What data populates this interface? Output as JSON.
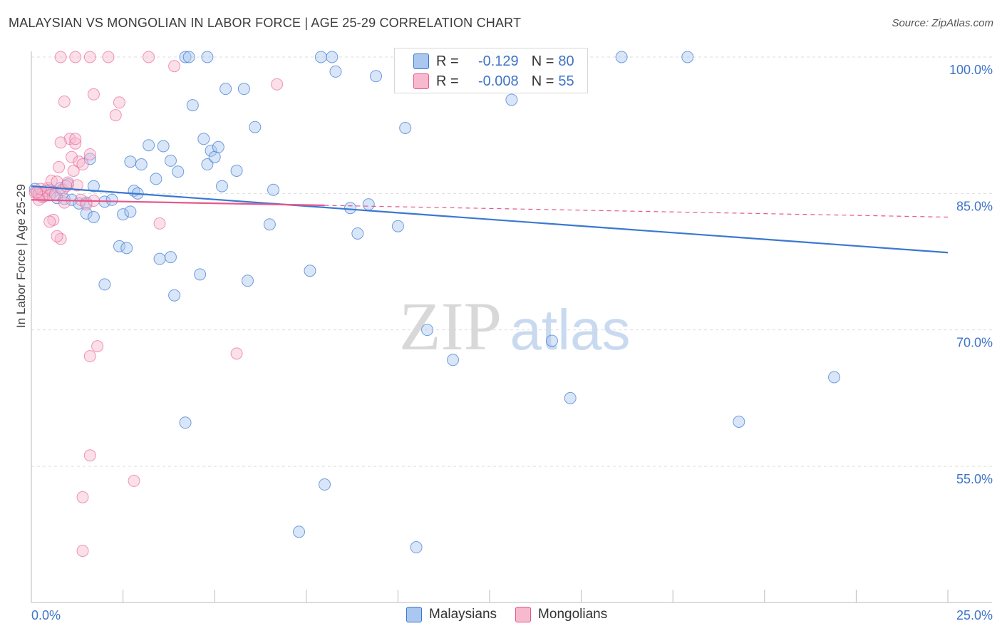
{
  "title": "MALAYSIAN VS MONGOLIAN IN LABOR FORCE | AGE 25-29 CORRELATION CHART",
  "source": "Source: ZipAtlas.com",
  "colors": {
    "blue": "#3a78d2",
    "blue_fill": "#a9c7ef",
    "pink": "#e6578c",
    "pink_fill": "#f7b9ce",
    "axis_label": "#3f74c7",
    "grid": "#dddddd"
  },
  "legend": {
    "rows": [
      {
        "r_label": "R =",
        "r_value": "-0.129",
        "n_label": "N =",
        "n_value": "80"
      },
      {
        "r_label": "R =",
        "r_value": "-0.008",
        "n_label": "N =",
        "n_value": "55"
      }
    ]
  },
  "bottom_legend": [
    "Malaysians",
    "Mongolians"
  ],
  "watermark": {
    "zip": "ZIP",
    "atlas": "atlas"
  },
  "chart_data": {
    "type": "scatter",
    "title": "MALAYSIAN VS MONGOLIAN IN LABOR FORCE | AGE 25-29 CORRELATION CHART",
    "xlabel": "",
    "ylabel": "In Labor Force | Age 25-29",
    "xlim": [
      0,
      25
    ],
    "ylim": [
      40,
      102
    ],
    "x_ticks": [
      0,
      2.5,
      5,
      7.5,
      10,
      12.5,
      15,
      17.5,
      20,
      22.5,
      25
    ],
    "x_tick_labels": {
      "first": "0.0%",
      "last": "25.0%"
    },
    "y_ticks": [
      100,
      85,
      70,
      55
    ],
    "y_tick_labels": [
      "100.0%",
      "85.0%",
      "70.0%",
      "55.0%"
    ],
    "series": [
      {
        "name": "Malaysians",
        "r": -0.129,
        "n": 80,
        "trend": {
          "x": [
            0,
            25
          ],
          "y": [
            85.8,
            78.5
          ],
          "dashed_from": null
        },
        "points": [
          [
            0.1,
            85.5
          ],
          [
            0.2,
            85.1
          ],
          [
            0.3,
            85.0
          ],
          [
            0.4,
            85.3
          ],
          [
            0.5,
            85.4
          ],
          [
            0.6,
            85.2
          ],
          [
            0.7,
            84.5
          ],
          [
            0.8,
            85.6
          ],
          [
            0.9,
            84.4
          ],
          [
            1.0,
            86.0
          ],
          [
            1.1,
            84.3
          ],
          [
            1.3,
            83.9
          ],
          [
            1.5,
            84.0
          ],
          [
            1.6,
            88.8
          ],
          [
            1.7,
            85.8
          ],
          [
            2.0,
            84.1
          ],
          [
            2.2,
            84.3
          ],
          [
            1.5,
            82.8
          ],
          [
            1.7,
            82.4
          ],
          [
            2.5,
            82.7
          ],
          [
            2.4,
            79.2
          ],
          [
            2.6,
            79.0
          ],
          [
            2.7,
            88.5
          ],
          [
            2.8,
            85.3
          ],
          [
            2.9,
            85.0
          ],
          [
            3.0,
            88.2
          ],
          [
            3.2,
            90.3
          ],
          [
            3.4,
            86.6
          ],
          [
            3.6,
            90.2
          ],
          [
            3.8,
            88.6
          ],
          [
            4.0,
            87.4
          ],
          [
            2.0,
            75.0
          ],
          [
            3.5,
            77.8
          ],
          [
            3.8,
            78.0
          ],
          [
            3.9,
            73.8
          ],
          [
            4.2,
            100.0
          ],
          [
            4.3,
            100.0
          ],
          [
            4.4,
            94.7
          ],
          [
            4.7,
            91.0
          ],
          [
            4.8,
            88.2
          ],
          [
            4.9,
            89.7
          ],
          [
            5.0,
            89.0
          ],
          [
            5.1,
            90.1
          ],
          [
            5.2,
            85.8
          ],
          [
            5.3,
            96.5
          ],
          [
            5.6,
            87.5
          ],
          [
            5.8,
            96.5
          ],
          [
            6.1,
            92.3
          ],
          [
            6.5,
            81.6
          ],
          [
            6.6,
            85.4
          ],
          [
            4.6,
            76.1
          ],
          [
            5.9,
            75.4
          ],
          [
            4.2,
            59.8
          ],
          [
            7.6,
            76.5
          ],
          [
            7.9,
            100.0
          ],
          [
            8.0,
            53.0
          ],
          [
            8.2,
            100.0
          ],
          [
            8.3,
            98.4
          ],
          [
            8.7,
            83.4
          ],
          [
            8.9,
            80.6
          ],
          [
            9.2,
            83.8
          ],
          [
            9.4,
            97.9
          ],
          [
            10.0,
            81.4
          ],
          [
            10.2,
            92.2
          ],
          [
            10.8,
            70.0
          ],
          [
            11.5,
            66.7
          ],
          [
            13.0,
            100.0
          ],
          [
            13.1,
            95.3
          ],
          [
            14.2,
            68.8
          ],
          [
            14.7,
            62.5
          ],
          [
            16.1,
            100.0
          ],
          [
            17.9,
            100.0
          ],
          [
            19.3,
            59.9
          ],
          [
            21.9,
            64.8
          ],
          [
            7.3,
            47.8
          ],
          [
            10.5,
            46.1
          ],
          [
            4.8,
            100.0
          ],
          [
            2.7,
            83.0
          ],
          [
            12.5,
            100.0
          ],
          [
            0.3,
            84.7
          ]
        ]
      },
      {
        "name": "Mongolians",
        "r": -0.008,
        "n": 55,
        "trend": {
          "x": [
            0,
            25
          ],
          "y": [
            84.3,
            82.4
          ],
          "dashed_from": 8.0
        },
        "points": [
          [
            0.1,
            85.1
          ],
          [
            0.2,
            84.9
          ],
          [
            0.3,
            85.0
          ],
          [
            0.35,
            84.7
          ],
          [
            0.4,
            85.3
          ],
          [
            0.45,
            85.6
          ],
          [
            0.5,
            84.8
          ],
          [
            0.55,
            86.4
          ],
          [
            0.6,
            82.1
          ],
          [
            0.65,
            84.9
          ],
          [
            0.7,
            86.3
          ],
          [
            0.75,
            87.9
          ],
          [
            0.8,
            80.0
          ],
          [
            0.85,
            85.4
          ],
          [
            0.9,
            84.0
          ],
          [
            0.95,
            85.8
          ],
          [
            1.0,
            86.2
          ],
          [
            1.05,
            91.0
          ],
          [
            1.1,
            89.0
          ],
          [
            1.15,
            87.5
          ],
          [
            1.2,
            90.5
          ],
          [
            1.25,
            85.9
          ],
          [
            1.3,
            88.5
          ],
          [
            1.35,
            84.3
          ],
          [
            1.4,
            88.2
          ],
          [
            1.5,
            83.8
          ],
          [
            1.6,
            89.3
          ],
          [
            1.7,
            84.2
          ],
          [
            0.8,
            90.6
          ],
          [
            1.2,
            91.0
          ],
          [
            0.9,
            95.1
          ],
          [
            1.7,
            95.9
          ],
          [
            2.3,
            93.6
          ],
          [
            2.4,
            95.0
          ],
          [
            1.6,
            100.0
          ],
          [
            1.2,
            100.0
          ],
          [
            0.8,
            100.0
          ],
          [
            2.1,
            100.0
          ],
          [
            3.2,
            100.0
          ],
          [
            3.9,
            99.0
          ],
          [
            6.7,
            97.0
          ],
          [
            3.5,
            81.7
          ],
          [
            0.7,
            80.3
          ],
          [
            0.5,
            81.9
          ],
          [
            0.3,
            84.6
          ],
          [
            1.8,
            68.2
          ],
          [
            1.6,
            67.1
          ],
          [
            5.6,
            67.4
          ],
          [
            1.6,
            56.2
          ],
          [
            2.8,
            53.4
          ],
          [
            1.4,
            51.6
          ],
          [
            1.4,
            45.7
          ],
          [
            0.25,
            85.5
          ],
          [
            0.2,
            84.3
          ],
          [
            0.15,
            85.1
          ]
        ]
      }
    ]
  }
}
